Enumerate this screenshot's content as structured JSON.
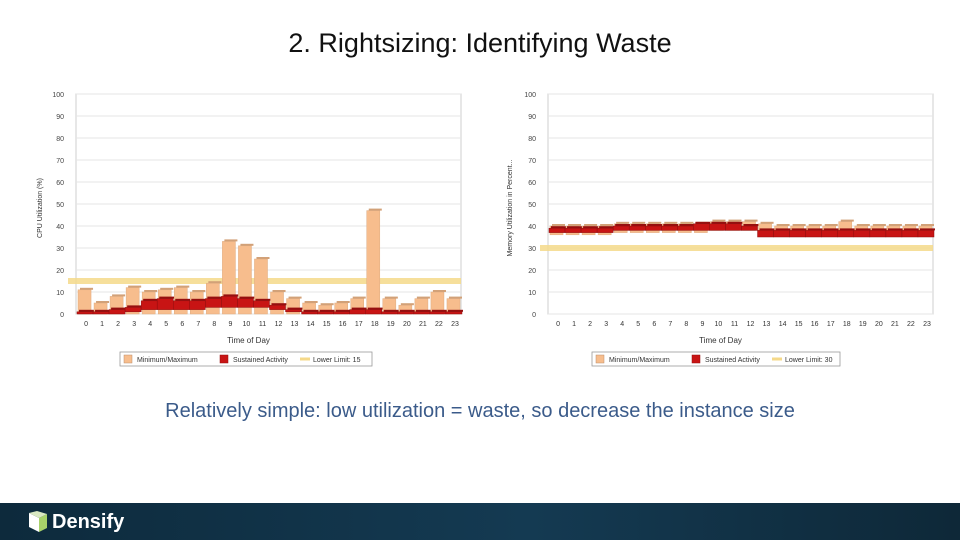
{
  "title": "2. Rightsizing: Identifying Waste",
  "caption": "Relatively simple: low utilization = waste, so decrease the instance size",
  "logo_text": "Densify",
  "colors": {
    "minmax": "#f7bd8d",
    "sustained": "#c81414",
    "lower_limit": "#f5d98a",
    "caption": "#3b5b8a",
    "footer": "#143a52"
  },
  "chart_data": [
    {
      "type": "bar",
      "ylabel": "CPU Utilization (%)",
      "xlabel": "Time of Day",
      "ylim": [
        0,
        100
      ],
      "yticks": [
        "0",
        "10",
        "20",
        "30",
        "40",
        "50",
        "60",
        "70",
        "80",
        "90",
        "100"
      ],
      "categories": [
        "0",
        "1",
        "2",
        "3",
        "4",
        "5",
        "6",
        "7",
        "8",
        "9",
        "10",
        "11",
        "12",
        "13",
        "14",
        "15",
        "16",
        "17",
        "18",
        "19",
        "20",
        "21",
        "22",
        "23"
      ],
      "legend": [
        "Minimum/Maximum",
        "Sustained Activity",
        "Lower Limit: 15"
      ],
      "lower_limit": 15,
      "series": [
        {
          "name": "Minimum/Maximum",
          "min": [
            0,
            0,
            0,
            0,
            0,
            0,
            0,
            0,
            0,
            0,
            0,
            0,
            0,
            0,
            0,
            0,
            0,
            0,
            0,
            0,
            0,
            0,
            0,
            0
          ],
          "max": [
            11,
            5,
            8,
            12,
            10,
            11,
            12,
            10,
            14,
            33,
            31,
            25,
            10,
            7,
            5,
            4,
            5,
            7,
            47,
            7,
            4,
            7,
            10,
            7
          ]
        },
        {
          "name": "Sustained Activity",
          "min": [
            0,
            0,
            0,
            1,
            2,
            2,
            2,
            2,
            3,
            3,
            3,
            3,
            2,
            1,
            0,
            0,
            0,
            0,
            0,
            0,
            0,
            0,
            0,
            0
          ],
          "max": [
            1,
            1,
            2,
            3,
            6,
            7,
            6,
            6,
            7,
            8,
            7,
            6,
            4,
            2,
            1,
            1,
            1,
            2,
            2,
            1,
            1,
            1,
            1,
            1
          ]
        }
      ]
    },
    {
      "type": "bar",
      "ylabel": "Memory Utilization in Percent...",
      "xlabel": "Time of Day",
      "ylim": [
        0,
        100
      ],
      "yticks": [
        "0",
        "10",
        "20",
        "30",
        "40",
        "50",
        "60",
        "70",
        "80",
        "90",
        "100"
      ],
      "categories": [
        "0",
        "1",
        "2",
        "3",
        "4",
        "5",
        "6",
        "7",
        "8",
        "9",
        "10",
        "11",
        "12",
        "13",
        "14",
        "15",
        "16",
        "17",
        "18",
        "19",
        "20",
        "21",
        "22",
        "23"
      ],
      "legend": [
        "Minimum/Maximum",
        "Sustained Activity",
        "Lower Limit: 30"
      ],
      "lower_limit": 30,
      "series": [
        {
          "name": "Minimum/Maximum",
          "min": [
            36,
            36,
            36,
            36,
            37,
            37,
            37,
            37,
            37,
            37,
            38,
            38,
            38,
            36,
            36,
            36,
            36,
            36,
            36,
            36,
            36,
            36,
            36,
            36
          ],
          "max": [
            40,
            40,
            40,
            40,
            41,
            41,
            41,
            41,
            41,
            41,
            42,
            42,
            42,
            41,
            40,
            40,
            40,
            40,
            42,
            40,
            40,
            40,
            40,
            40
          ]
        },
        {
          "name": "Sustained Activity",
          "min": [
            37,
            37,
            37,
            37,
            38,
            38,
            38,
            38,
            38,
            38,
            38,
            38,
            38,
            35,
            35,
            35,
            35,
            35,
            35,
            35,
            35,
            35,
            35,
            35
          ],
          "max": [
            39,
            39,
            39,
            39,
            40,
            40,
            40,
            40,
            40,
            41,
            41,
            41,
            40,
            38,
            38,
            38,
            38,
            38,
            38,
            38,
            38,
            38,
            38,
            38
          ]
        }
      ]
    }
  ]
}
